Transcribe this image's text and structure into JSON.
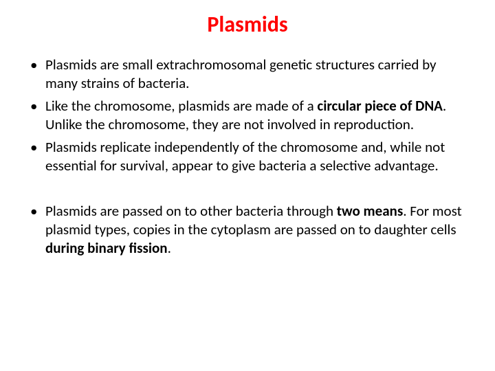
{
  "title": {
    "text": "Plasmids",
    "color": "#ff0000",
    "fontsize": 32
  },
  "body": {
    "fontsize": 21,
    "color": "#000000"
  },
  "bullets": [
    {
      "segments": [
        {
          "t": "Plasmids are small extrachromosomal genetic structures carried by many strains of bacteria.",
          "bold": false
        }
      ]
    },
    {
      "segments": [
        {
          "t": "Like the chromosome, plasmids are made of a ",
          "bold": false
        },
        {
          "t": "circular piece of DNA",
          "bold": true
        },
        {
          "t": ". Unlike the chromosome, they are not involved in reproduction.",
          "bold": false
        }
      ]
    },
    {
      "segments": [
        {
          "t": "Plasmids replicate independently of the chromosome and, while not essential for survival, appear to give bacteria a selective advantage.",
          "bold": false
        }
      ]
    }
  ],
  "bullets2": [
    {
      "segments": [
        {
          "t": "Plasmids are passed on to other bacteria through ",
          "bold": false
        },
        {
          "t": "two means",
          "bold": true
        },
        {
          "t": ". For most plasmid types, copies in the cytoplasm are passed on to daughter cells ",
          "bold": false
        },
        {
          "t": "during binary fission",
          "bold": true
        },
        {
          "t": ".",
          "bold": false
        }
      ]
    }
  ]
}
